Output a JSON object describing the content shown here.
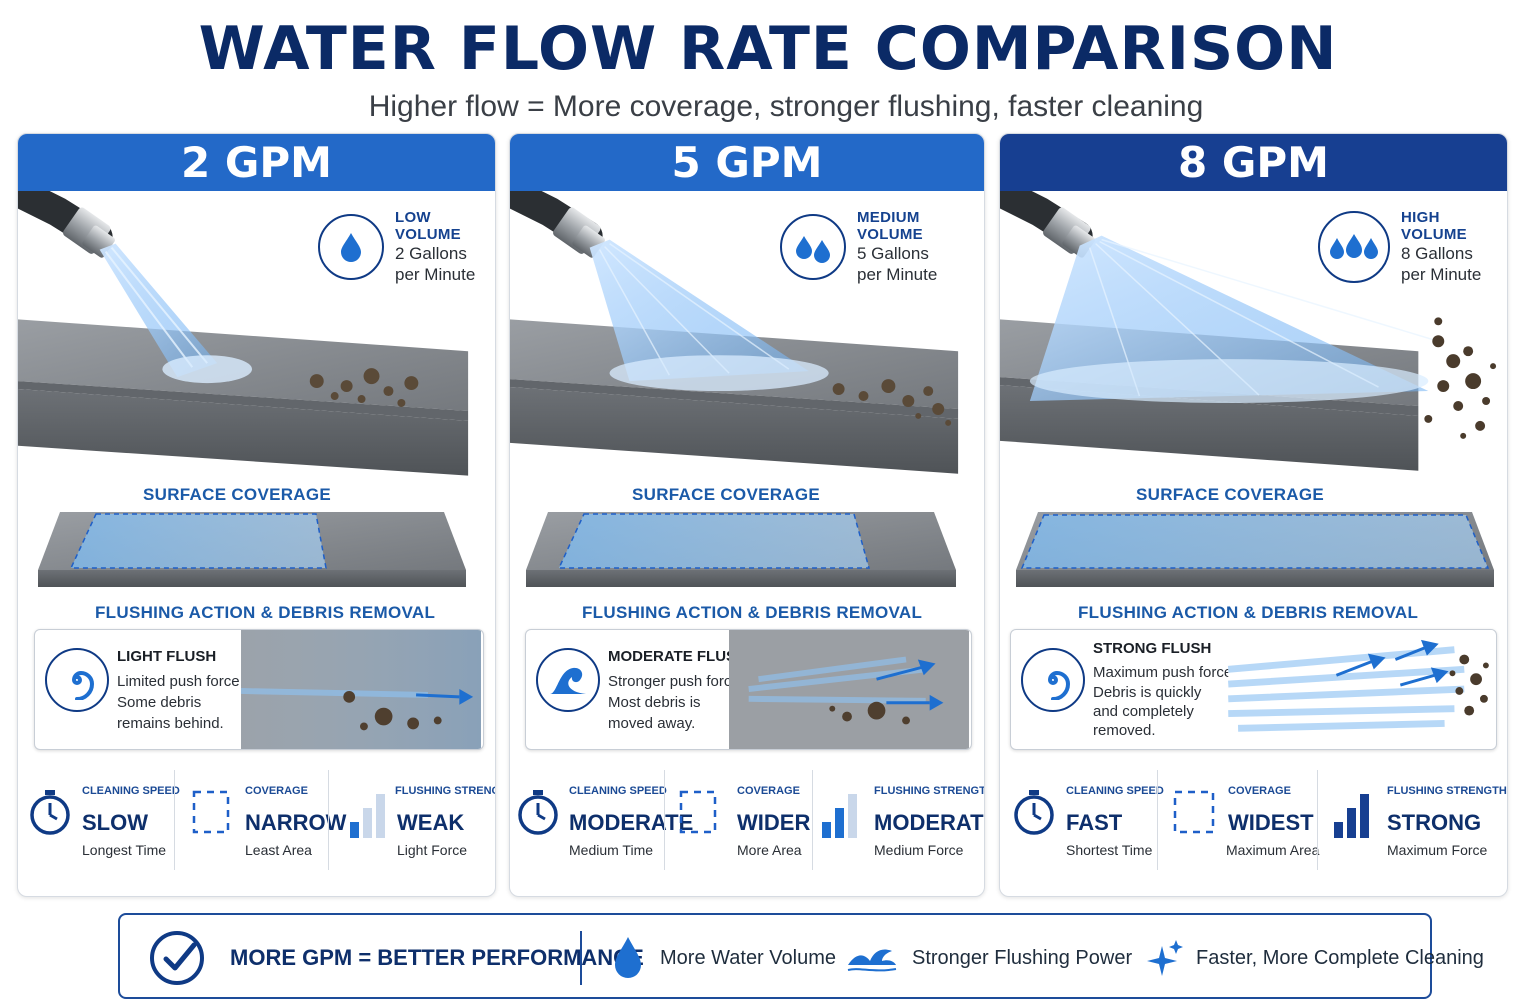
{
  "title": "WATER FLOW RATE COMPARISON",
  "subtitle": "Higher flow = More coverage, stronger flushing, faster cleaning",
  "section_labels": {
    "coverage": "SURFACE COVERAGE",
    "flushing": "FLUSHING ACTION & DEBRIS REMOVAL"
  },
  "colors": {
    "navy": "#0b2a66",
    "header_blue": "#2369c8",
    "header_dark": "#173f91",
    "accent": "#1b5aa8"
  },
  "cards": [
    {
      "header": "2 GPM",
      "volume": {
        "title": "LOW VOLUME",
        "line1": "2 Gallons",
        "line2": "per Minute",
        "icon": "single-drop-icon"
      },
      "flush": {
        "title": "LIGHT FLUSH",
        "line1": "Limited push force.",
        "line2": "Some debris",
        "line3": "remains behind.",
        "line4": "",
        "icon": "swirl-icon"
      },
      "metrics": [
        {
          "label": "CLEANING SPEED",
          "value": "SLOW",
          "sub": "Longest Time",
          "icon": "stopwatch-icon"
        },
        {
          "label": "COVERAGE",
          "value": "NARROW",
          "sub": "Least Area",
          "icon": "dashed-frame-icon"
        },
        {
          "label": "FLUSHING STRENGTH",
          "value": "WEAK",
          "sub": "Light Force",
          "icon": "signal-bars-icon",
          "level": 1
        }
      ],
      "coverage_fraction": 0.3
    },
    {
      "header": "5 GPM",
      "volume": {
        "title": "MEDIUM VOLUME",
        "line1": "5 Gallons",
        "line2": "per Minute",
        "icon": "double-drop-icon"
      },
      "flush": {
        "title": "MODERATE FLUSH",
        "line1": "Stronger push force.",
        "line2": "Most debris is",
        "line3": "moved away.",
        "line4": "",
        "icon": "wave-icon"
      },
      "metrics": [
        {
          "label": "CLEANING SPEED",
          "value": "MODERATE",
          "sub": "Medium Time",
          "icon": "stopwatch-icon"
        },
        {
          "label": "COVERAGE",
          "value": "WIDER",
          "sub": "More Area",
          "icon": "dashed-frame-icon"
        },
        {
          "label": "FLUSHING STRENGTH",
          "value": "MODERATE",
          "sub": "Medium Force",
          "icon": "signal-bars-icon",
          "level": 2
        }
      ],
      "coverage_fraction": 0.6
    },
    {
      "header": "8 GPM",
      "volume": {
        "title": "HIGH VOLUME",
        "line1": "8 Gallons",
        "line2": "per Minute",
        "icon": "triple-drop-icon"
      },
      "flush": {
        "title": "STRONG FLUSH",
        "line1": "Maximum push force.",
        "line2": "Debris is quickly",
        "line3": "and completely",
        "line4": "removed.",
        "icon": "swirl-icon"
      },
      "metrics": [
        {
          "label": "CLEANING SPEED",
          "value": "FAST",
          "sub": "Shortest Time",
          "icon": "stopwatch-icon"
        },
        {
          "label": "COVERAGE",
          "value": "WIDEST",
          "sub": "Maximum Area",
          "icon": "dashed-frame-icon"
        },
        {
          "label": "FLUSHING STRENGTH",
          "value": "STRONG",
          "sub": "Maximum Force",
          "icon": "signal-bars-icon",
          "level": 3
        }
      ],
      "coverage_fraction": 1.0
    }
  ],
  "bottom": {
    "main": "MORE GPM = BETTER PERFORMANCE",
    "item1": "More Water Volume",
    "item2": "Stronger Flushing Power",
    "item3": "Faster, More Complete Cleaning"
  }
}
